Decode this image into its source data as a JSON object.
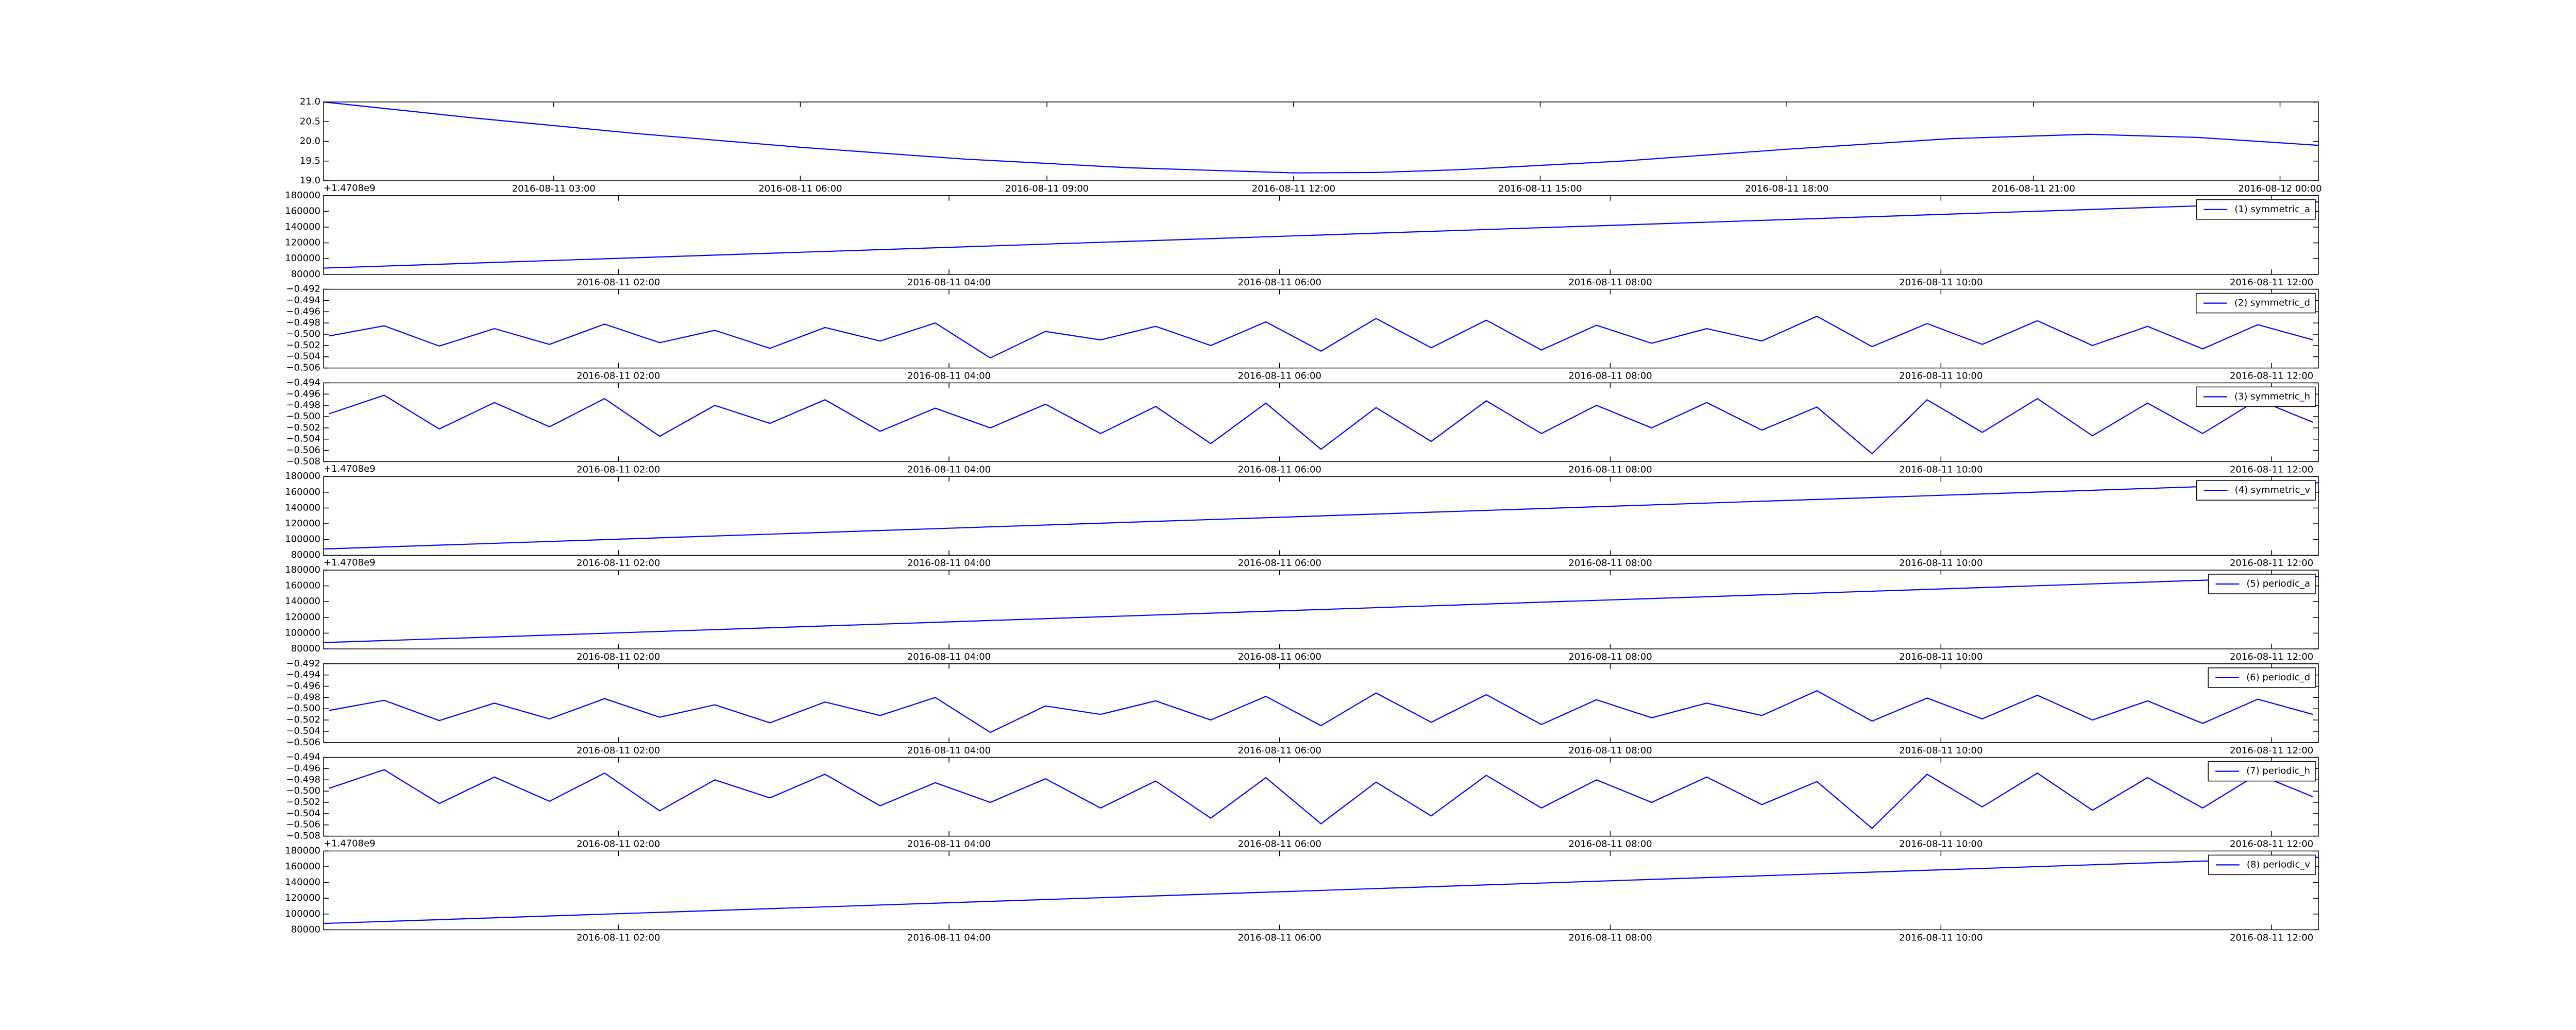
{
  "chart_data": [
    {
      "type": "line",
      "x": [
        "2016-08-11 00:12",
        "2016-08-11 02:00",
        "2016-08-11 04:00",
        "2016-08-11 06:00",
        "2016-08-11 08:00",
        "2016-08-11 10:00",
        "2016-08-11 12:00",
        "2016-08-11 13:00",
        "2016-08-11 14:00",
        "2016-08-11 16:00",
        "2016-08-11 18:00",
        "2016-08-11 20:00",
        "2016-08-11 21:40",
        "2016-08-11 23:00",
        "2016-08-12 00:28"
      ],
      "series": [
        {
          "color": "#0000ff",
          "values": [
            21.0,
            20.6,
            20.2,
            19.85,
            19.55,
            19.33,
            19.2,
            19.21,
            19.28,
            19.5,
            19.8,
            20.07,
            20.18,
            20.1,
            19.9
          ]
        }
      ],
      "xlim": [
        "2016-08-11 00:12",
        "2016-08-12 00:28"
      ],
      "xticks": [
        "2016-08-11 03:00",
        "2016-08-11 06:00",
        "2016-08-11 09:00",
        "2016-08-11 12:00",
        "2016-08-11 15:00",
        "2016-08-11 18:00",
        "2016-08-11 21:00",
        "2016-08-12 00:00"
      ],
      "ylim": [
        19.0,
        21.0
      ],
      "yticks": [
        {
          "value": 19.0,
          "label": "19.0"
        },
        19.5,
        {
          "value": 20.0,
          "label": "20.0"
        },
        20.5,
        {
          "value": 21.0,
          "label": "21.0"
        }
      ]
    },
    {
      "type": "line",
      "offset_label": "+1.4708e9",
      "x": [
        "2016-08-11 00:13",
        "2016-08-11 12:17"
      ],
      "series": [
        {
          "name": "(1) symmetric_a",
          "color": "#0000ff",
          "values": [
            88000,
            172000
          ]
        }
      ],
      "xlim": [
        "2016-08-11 00:13",
        "2016-08-11 12:17"
      ],
      "xticks": [
        "2016-08-11 02:00",
        "2016-08-11 04:00",
        "2016-08-11 06:00",
        "2016-08-11 08:00",
        "2016-08-11 10:00",
        "2016-08-11 12:00"
      ],
      "ylim": [
        80000,
        180000
      ],
      "yticks": [
        80000,
        100000,
        120000,
        140000,
        160000,
        180000
      ]
    },
    {
      "type": "line",
      "x": [
        "2016-08-11 00:15",
        "2016-08-11 00:35",
        "2016-08-11 00:55",
        "2016-08-11 01:15",
        "2016-08-11 01:35",
        "2016-08-11 01:55",
        "2016-08-11 02:15",
        "2016-08-11 02:35",
        "2016-08-11 02:55",
        "2016-08-11 03:15",
        "2016-08-11 03:35",
        "2016-08-11 03:55",
        "2016-08-11 04:15",
        "2016-08-11 04:35",
        "2016-08-11 04:55",
        "2016-08-11 05:15",
        "2016-08-11 05:35",
        "2016-08-11 05:55",
        "2016-08-11 06:15",
        "2016-08-11 06:35",
        "2016-08-11 06:55",
        "2016-08-11 07:15",
        "2016-08-11 07:35",
        "2016-08-11 07:55",
        "2016-08-11 08:15",
        "2016-08-11 08:35",
        "2016-08-11 08:55",
        "2016-08-11 09:15",
        "2016-08-11 09:35",
        "2016-08-11 09:55",
        "2016-08-11 10:15",
        "2016-08-11 10:35",
        "2016-08-11 10:55",
        "2016-08-11 11:15",
        "2016-08-11 11:35",
        "2016-08-11 11:55",
        "2016-08-11 12:15"
      ],
      "series": [
        {
          "name": "(2) symmetric_d",
          "color": "#0000ff",
          "values": [
            -0.5003,
            -0.4985,
            -0.5021,
            -0.499,
            -0.5018,
            -0.4982,
            -0.5015,
            -0.4993,
            -0.5025,
            -0.4988,
            -0.5012,
            -0.498,
            -0.5042,
            -0.4995,
            -0.501,
            -0.4986,
            -0.502,
            -0.4978,
            -0.503,
            -0.4972,
            -0.5024,
            -0.4975,
            -0.5028,
            -0.4984,
            -0.5016,
            -0.499,
            -0.5012,
            -0.4968,
            -0.5022,
            -0.4981,
            -0.5018,
            -0.4976,
            -0.502,
            -0.4986,
            -0.5026,
            -0.4983,
            -0.501
          ]
        }
      ],
      "xlim": [
        "2016-08-11 00:13",
        "2016-08-11 12:17"
      ],
      "xticks": [
        "2016-08-11 02:00",
        "2016-08-11 04:00",
        "2016-08-11 06:00",
        "2016-08-11 08:00",
        "2016-08-11 10:00",
        "2016-08-11 12:00"
      ],
      "ylim": [
        -0.506,
        -0.492
      ],
      "yticks": [
        {
          "value": -0.506,
          "label": "−0.506"
        },
        {
          "value": -0.504,
          "label": "−0.504"
        },
        {
          "value": -0.502,
          "label": "−0.502"
        },
        {
          "value": -0.5,
          "label": "−0.500"
        },
        {
          "value": -0.498,
          "label": "−0.498"
        },
        {
          "value": -0.496,
          "label": "−0.496"
        },
        {
          "value": -0.494,
          "label": "−0.494"
        },
        {
          "value": -0.492,
          "label": "−0.492"
        }
      ]
    },
    {
      "type": "line",
      "x": [
        "2016-08-11 00:15",
        "2016-08-11 00:35",
        "2016-08-11 00:55",
        "2016-08-11 01:15",
        "2016-08-11 01:35",
        "2016-08-11 01:55",
        "2016-08-11 02:15",
        "2016-08-11 02:35",
        "2016-08-11 02:55",
        "2016-08-11 03:15",
        "2016-08-11 03:35",
        "2016-08-11 03:55",
        "2016-08-11 04:15",
        "2016-08-11 04:35",
        "2016-08-11 04:55",
        "2016-08-11 05:15",
        "2016-08-11 05:35",
        "2016-08-11 05:55",
        "2016-08-11 06:15",
        "2016-08-11 06:35",
        "2016-08-11 06:55",
        "2016-08-11 07:15",
        "2016-08-11 07:35",
        "2016-08-11 07:55",
        "2016-08-11 08:15",
        "2016-08-11 08:35",
        "2016-08-11 08:55",
        "2016-08-11 09:15",
        "2016-08-11 09:35",
        "2016-08-11 09:55",
        "2016-08-11 10:15",
        "2016-08-11 10:35",
        "2016-08-11 10:55",
        "2016-08-11 11:15",
        "2016-08-11 11:35",
        "2016-08-11 11:55",
        "2016-08-11 12:15"
      ],
      "series": [
        {
          "name": "(3) symmetric_h",
          "color": "#0000ff",
          "values": [
            -0.4995,
            -0.4962,
            -0.5022,
            -0.4975,
            -0.5018,
            -0.4968,
            -0.5035,
            -0.498,
            -0.5012,
            -0.497,
            -0.5026,
            -0.4985,
            -0.502,
            -0.4978,
            -0.503,
            -0.4982,
            -0.5048,
            -0.4976,
            -0.5058,
            -0.4984,
            -0.5044,
            -0.4972,
            -0.503,
            -0.498,
            -0.502,
            -0.4975,
            -0.5024,
            -0.4983,
            -0.5066,
            -0.497,
            -0.5028,
            -0.4968,
            -0.5034,
            -0.4976,
            -0.503,
            -0.497,
            -0.501
          ]
        }
      ],
      "xlim": [
        "2016-08-11 00:13",
        "2016-08-11 12:17"
      ],
      "xticks": [
        "2016-08-11 02:00",
        "2016-08-11 04:00",
        "2016-08-11 06:00",
        "2016-08-11 08:00",
        "2016-08-11 10:00",
        "2016-08-11 12:00"
      ],
      "ylim": [
        -0.508,
        -0.494
      ],
      "yticks": [
        {
          "value": -0.508,
          "label": "−0.508"
        },
        {
          "value": -0.506,
          "label": "−0.506"
        },
        {
          "value": -0.504,
          "label": "−0.504"
        },
        {
          "value": -0.502,
          "label": "−0.502"
        },
        {
          "value": -0.5,
          "label": "−0.500"
        },
        {
          "value": -0.498,
          "label": "−0.498"
        },
        {
          "value": -0.496,
          "label": "−0.496"
        },
        {
          "value": -0.494,
          "label": "−0.494"
        }
      ]
    },
    {
      "type": "line",
      "offset_label": "+1.4708e9",
      "x": [
        "2016-08-11 00:13",
        "2016-08-11 12:17"
      ],
      "series": [
        {
          "name": "(4) symmetric_v",
          "color": "#0000ff",
          "values": [
            88000,
            172000
          ]
        }
      ],
      "xlim": [
        "2016-08-11 00:13",
        "2016-08-11 12:17"
      ],
      "xticks": [
        "2016-08-11 02:00",
        "2016-08-11 04:00",
        "2016-08-11 06:00",
        "2016-08-11 08:00",
        "2016-08-11 10:00",
        "2016-08-11 12:00"
      ],
      "ylim": [
        80000,
        180000
      ],
      "yticks": [
        80000,
        100000,
        120000,
        140000,
        160000,
        180000
      ]
    },
    {
      "type": "line",
      "offset_label": "+1.4708e9",
      "x": [
        "2016-08-11 00:13",
        "2016-08-11 12:17"
      ],
      "series": [
        {
          "name": "(5) periodic_a",
          "color": "#0000ff",
          "values": [
            88000,
            172000
          ]
        }
      ],
      "xlim": [
        "2016-08-11 00:13",
        "2016-08-11 12:17"
      ],
      "xticks": [
        "2016-08-11 02:00",
        "2016-08-11 04:00",
        "2016-08-11 06:00",
        "2016-08-11 08:00",
        "2016-08-11 10:00",
        "2016-08-11 12:00"
      ],
      "ylim": [
        80000,
        180000
      ],
      "yticks": [
        80000,
        100000,
        120000,
        140000,
        160000,
        180000
      ]
    },
    {
      "type": "line",
      "x": [
        "2016-08-11 00:15",
        "2016-08-11 00:35",
        "2016-08-11 00:55",
        "2016-08-11 01:15",
        "2016-08-11 01:35",
        "2016-08-11 01:55",
        "2016-08-11 02:15",
        "2016-08-11 02:35",
        "2016-08-11 02:55",
        "2016-08-11 03:15",
        "2016-08-11 03:35",
        "2016-08-11 03:55",
        "2016-08-11 04:15",
        "2016-08-11 04:35",
        "2016-08-11 04:55",
        "2016-08-11 05:15",
        "2016-08-11 05:35",
        "2016-08-11 05:55",
        "2016-08-11 06:15",
        "2016-08-11 06:35",
        "2016-08-11 06:55",
        "2016-08-11 07:15",
        "2016-08-11 07:35",
        "2016-08-11 07:55",
        "2016-08-11 08:15",
        "2016-08-11 08:35",
        "2016-08-11 08:55",
        "2016-08-11 09:15",
        "2016-08-11 09:35",
        "2016-08-11 09:55",
        "2016-08-11 10:15",
        "2016-08-11 10:35",
        "2016-08-11 10:55",
        "2016-08-11 11:15",
        "2016-08-11 11:35",
        "2016-08-11 11:55",
        "2016-08-11 12:15"
      ],
      "series": [
        {
          "name": "(6) periodic_d",
          "color": "#0000ff",
          "values": [
            -0.5003,
            -0.4985,
            -0.5021,
            -0.499,
            -0.5018,
            -0.4982,
            -0.5015,
            -0.4993,
            -0.5025,
            -0.4988,
            -0.5012,
            -0.498,
            -0.5042,
            -0.4995,
            -0.501,
            -0.4986,
            -0.502,
            -0.4978,
            -0.503,
            -0.4972,
            -0.5024,
            -0.4975,
            -0.5028,
            -0.4984,
            -0.5016,
            -0.499,
            -0.5012,
            -0.4968,
            -0.5022,
            -0.4981,
            -0.5018,
            -0.4976,
            -0.502,
            -0.4986,
            -0.5026,
            -0.4983,
            -0.501
          ]
        }
      ],
      "xlim": [
        "2016-08-11 00:13",
        "2016-08-11 12:17"
      ],
      "xticks": [
        "2016-08-11 02:00",
        "2016-08-11 04:00",
        "2016-08-11 06:00",
        "2016-08-11 08:00",
        "2016-08-11 10:00",
        "2016-08-11 12:00"
      ],
      "ylim": [
        -0.506,
        -0.492
      ],
      "yticks": [
        {
          "value": -0.506,
          "label": "−0.506"
        },
        {
          "value": -0.504,
          "label": "−0.504"
        },
        {
          "value": -0.502,
          "label": "−0.502"
        },
        {
          "value": -0.5,
          "label": "−0.500"
        },
        {
          "value": -0.498,
          "label": "−0.498"
        },
        {
          "value": -0.496,
          "label": "−0.496"
        },
        {
          "value": -0.494,
          "label": "−0.494"
        },
        {
          "value": -0.492,
          "label": "−0.492"
        }
      ]
    },
    {
      "type": "line",
      "x": [
        "2016-08-11 00:15",
        "2016-08-11 00:35",
        "2016-08-11 00:55",
        "2016-08-11 01:15",
        "2016-08-11 01:35",
        "2016-08-11 01:55",
        "2016-08-11 02:15",
        "2016-08-11 02:35",
        "2016-08-11 02:55",
        "2016-08-11 03:15",
        "2016-08-11 03:35",
        "2016-08-11 03:55",
        "2016-08-11 04:15",
        "2016-08-11 04:35",
        "2016-08-11 04:55",
        "2016-08-11 05:15",
        "2016-08-11 05:35",
        "2016-08-11 05:55",
        "2016-08-11 06:15",
        "2016-08-11 06:35",
        "2016-08-11 06:55",
        "2016-08-11 07:15",
        "2016-08-11 07:35",
        "2016-08-11 07:55",
        "2016-08-11 08:15",
        "2016-08-11 08:35",
        "2016-08-11 08:55",
        "2016-08-11 09:15",
        "2016-08-11 09:35",
        "2016-08-11 09:55",
        "2016-08-11 10:15",
        "2016-08-11 10:35",
        "2016-08-11 10:55",
        "2016-08-11 11:15",
        "2016-08-11 11:35",
        "2016-08-11 11:55",
        "2016-08-11 12:15"
      ],
      "series": [
        {
          "name": "(7) periodic_h",
          "color": "#0000ff",
          "values": [
            -0.4995,
            -0.4962,
            -0.5022,
            -0.4975,
            -0.5018,
            -0.4968,
            -0.5035,
            -0.498,
            -0.5012,
            -0.497,
            -0.5026,
            -0.4985,
            -0.502,
            -0.4978,
            -0.503,
            -0.4982,
            -0.5048,
            -0.4976,
            -0.5058,
            -0.4984,
            -0.5044,
            -0.4972,
            -0.503,
            -0.498,
            -0.502,
            -0.4975,
            -0.5024,
            -0.4983,
            -0.5066,
            -0.497,
            -0.5028,
            -0.4968,
            -0.5034,
            -0.4976,
            -0.503,
            -0.497,
            -0.501
          ]
        }
      ],
      "xlim": [
        "2016-08-11 00:13",
        "2016-08-11 12:17"
      ],
      "xticks": [
        "2016-08-11 02:00",
        "2016-08-11 04:00",
        "2016-08-11 06:00",
        "2016-08-11 08:00",
        "2016-08-11 10:00",
        "2016-08-11 12:00"
      ],
      "ylim": [
        -0.508,
        -0.494
      ],
      "yticks": [
        {
          "value": -0.508,
          "label": "−0.508"
        },
        {
          "value": -0.506,
          "label": "−0.506"
        },
        {
          "value": -0.504,
          "label": "−0.504"
        },
        {
          "value": -0.502,
          "label": "−0.502"
        },
        {
          "value": -0.5,
          "label": "−0.500"
        },
        {
          "value": -0.498,
          "label": "−0.498"
        },
        {
          "value": -0.496,
          "label": "−0.496"
        },
        {
          "value": -0.494,
          "label": "−0.494"
        }
      ]
    },
    {
      "type": "line",
      "offset_label": "+1.4708e9",
      "x": [
        "2016-08-11 00:13",
        "2016-08-11 12:17"
      ],
      "series": [
        {
          "name": "(8) periodic_v",
          "color": "#0000ff",
          "values": [
            88000,
            172000
          ]
        }
      ],
      "xlim": [
        "2016-08-11 00:13",
        "2016-08-11 12:17"
      ],
      "xticks": [
        "2016-08-11 02:00",
        "2016-08-11 04:00",
        "2016-08-11 06:00",
        "2016-08-11 08:00",
        "2016-08-11 10:00",
        "2016-08-11 12:00"
      ],
      "ylim": [
        80000,
        180000
      ],
      "yticks": [
        80000,
        100000,
        120000,
        140000,
        160000,
        180000
      ]
    }
  ]
}
